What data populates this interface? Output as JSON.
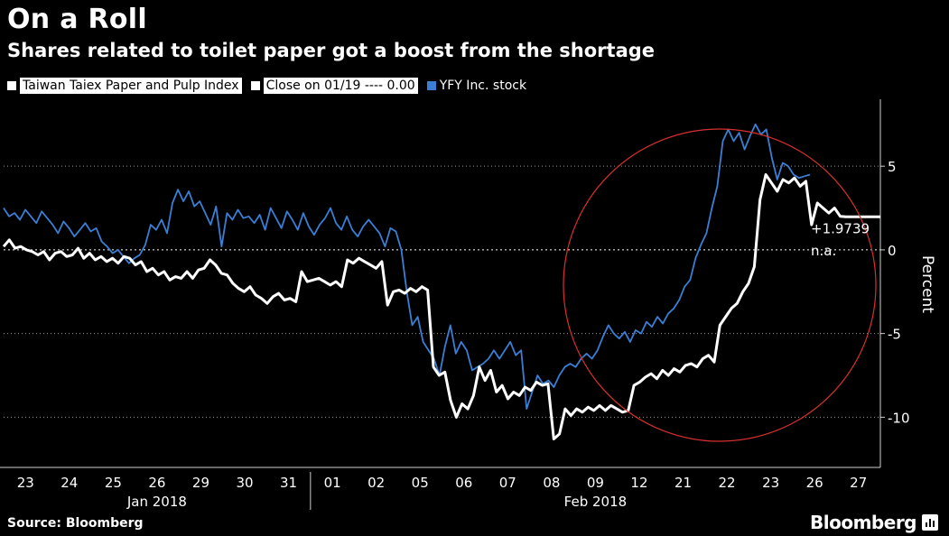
{
  "header": {
    "title": "On a Roll",
    "subtitle": "Shares related to toilet paper got a boost from the shortage"
  },
  "legend": {
    "items": [
      {
        "label": "Taiwan Taiex Paper and Pulp Index",
        "color": "#ffffff"
      },
      {
        "label": "Close on 01/19 ---- 0.00",
        "color": "#ffffff"
      },
      {
        "label": "YFY Inc. stock",
        "color": "#3a7fd5"
      }
    ]
  },
  "footer": {
    "source": "Source: Bloomberg",
    "brand": "Bloomberg"
  },
  "colors": {
    "index": "#ffffff",
    "stock": "#3a7fd5",
    "circle": "#d8302c",
    "grid": "#9a9a9a"
  },
  "chart_data": {
    "type": "line",
    "ylabel": "Percent",
    "ylim": [
      -13,
      9
    ],
    "yticks": [
      5,
      0,
      -5,
      -10
    ],
    "x_ticks": [
      "23",
      "24",
      "25",
      "26",
      "29",
      "30",
      "31",
      "01",
      "02",
      "05",
      "06",
      "07",
      "08",
      "09",
      "12",
      "21",
      "22",
      "23",
      "26",
      "27"
    ],
    "month_labels": [
      {
        "label": "Jan 2018",
        "from": 0,
        "to": 6
      },
      {
        "label": "Feb 2018",
        "from": 7,
        "to": 19
      }
    ],
    "annotations": {
      "last_value_label": "+1.9739",
      "na_label": "n.a.",
      "last_value": 1.9739
    },
    "series": [
      {
        "name": "Taiwan Taiex Paper and Pulp Index",
        "values": [
          0.2,
          0.6,
          0.1,
          0.2,
          0.0,
          -0.1,
          -0.3,
          -0.1,
          -0.6,
          -0.2,
          -0.1,
          -0.4,
          -0.3,
          0.1,
          -0.5,
          -0.2,
          -0.6,
          -0.4,
          -0.7,
          -0.5,
          -0.8,
          -0.4,
          -0.5,
          -0.9,
          -0.7,
          -1.3,
          -1.1,
          -1.5,
          -1.3,
          -1.8,
          -1.6,
          -1.7,
          -1.3,
          -1.7,
          -1.2,
          -1.1,
          -0.6,
          -0.9,
          -1.4,
          -1.5,
          -2.0,
          -2.3,
          -2.5,
          -2.2,
          -2.7,
          -2.9,
          -3.2,
          -2.8,
          -2.6,
          -3.0,
          -2.9,
          -3.1,
          -1.3,
          -1.9,
          -1.8,
          -1.7,
          -1.9,
          -2.1,
          -1.9,
          -2.2,
          -0.6,
          -0.8,
          -0.5,
          -0.7,
          -0.9,
          -1.1,
          -0.7,
          -3.3,
          -2.5,
          -2.4,
          -2.6,
          -2.3,
          -2.5,
          -2.2,
          -2.4,
          -7.0,
          -7.5,
          -7.3,
          -9.0,
          -10.0,
          -9.2,
          -9.5,
          -8.7,
          -7.0,
          -7.8,
          -7.2,
          -8.5,
          -8.1,
          -8.9,
          -8.5,
          -8.7,
          -8.2,
          -8.4,
          -7.9,
          -8.1,
          -8.0,
          -11.3,
          -11.0,
          -9.5,
          -9.9,
          -9.5,
          -9.7,
          -9.4,
          -9.6,
          -9.3,
          -9.6,
          -9.3,
          -9.5,
          -9.7,
          -9.6,
          -8.1,
          -7.9,
          -7.6,
          -7.4,
          -7.7,
          -7.2,
          -7.5,
          -7.1,
          -7.3,
          -6.9,
          -6.8,
          -7.0,
          -6.5,
          -6.3,
          -6.7,
          -4.5,
          -4.0,
          -3.5,
          -3.2,
          -2.5,
          -2.0,
          -1.0,
          3.0,
          4.5,
          4.0,
          3.5,
          4.2,
          4.0,
          4.3,
          3.8,
          4.1,
          1.5,
          2.8,
          2.5,
          2.2,
          2.5,
          2.0,
          1.9739,
          1.9739,
          1.9739,
          1.9739,
          1.9739,
          1.9739,
          1.9739
        ]
      },
      {
        "name": "YFY Inc. stock",
        "values": [
          2.5,
          2.0,
          2.2,
          1.8,
          2.4,
          2.0,
          1.6,
          2.3,
          1.9,
          1.5,
          1.0,
          1.7,
          1.3,
          0.8,
          1.2,
          1.6,
          1.1,
          1.3,
          0.5,
          0.2,
          -0.2,
          0.0,
          -0.4,
          -0.8,
          -0.5,
          -0.3,
          0.3,
          1.5,
          1.2,
          1.8,
          1.0,
          2.8,
          3.6,
          2.9,
          3.5,
          2.6,
          2.9,
          2.2,
          1.5,
          2.6,
          0.2,
          2.2,
          1.8,
          2.4,
          1.9,
          2.0,
          1.6,
          2.1,
          1.2,
          2.5,
          1.9,
          1.3,
          2.3,
          1.8,
          1.2,
          2.2,
          1.4,
          0.9,
          1.5,
          1.9,
          2.5,
          1.6,
          1.2,
          2.0,
          1.2,
          0.8,
          1.4,
          1.8,
          1.4,
          1.0,
          0.2,
          1.3,
          1.1,
          0.0,
          -2.5,
          -4.5,
          -4.0,
          -5.5,
          -6.0,
          -6.5,
          -7.5,
          -5.8,
          -4.5,
          -6.2,
          -5.5,
          -6.0,
          -7.2,
          -7.0,
          -6.8,
          -6.5,
          -6.0,
          -6.5,
          -6.0,
          -5.5,
          -6.3,
          -6.0,
          -9.5,
          -8.5,
          -7.5,
          -8.0,
          -7.8,
          -8.2,
          -7.5,
          -7.0,
          -6.8,
          -7.0,
          -6.5,
          -6.2,
          -6.5,
          -6.0,
          -5.2,
          -4.5,
          -5.0,
          -5.3,
          -4.9,
          -5.5,
          -4.8,
          -5.0,
          -4.3,
          -4.6,
          -4.0,
          -4.4,
          -3.8,
          -3.5,
          -3.0,
          -2.2,
          -1.8,
          -0.5,
          0.3,
          1.0,
          2.5,
          3.8,
          6.5,
          7.2,
          6.5,
          7.0,
          6.0,
          6.8,
          7.5,
          6.9,
          7.2,
          5.5,
          4.2,
          5.2,
          5.0,
          4.5,
          4.3,
          4.4,
          4.5
        ]
      }
    ]
  }
}
